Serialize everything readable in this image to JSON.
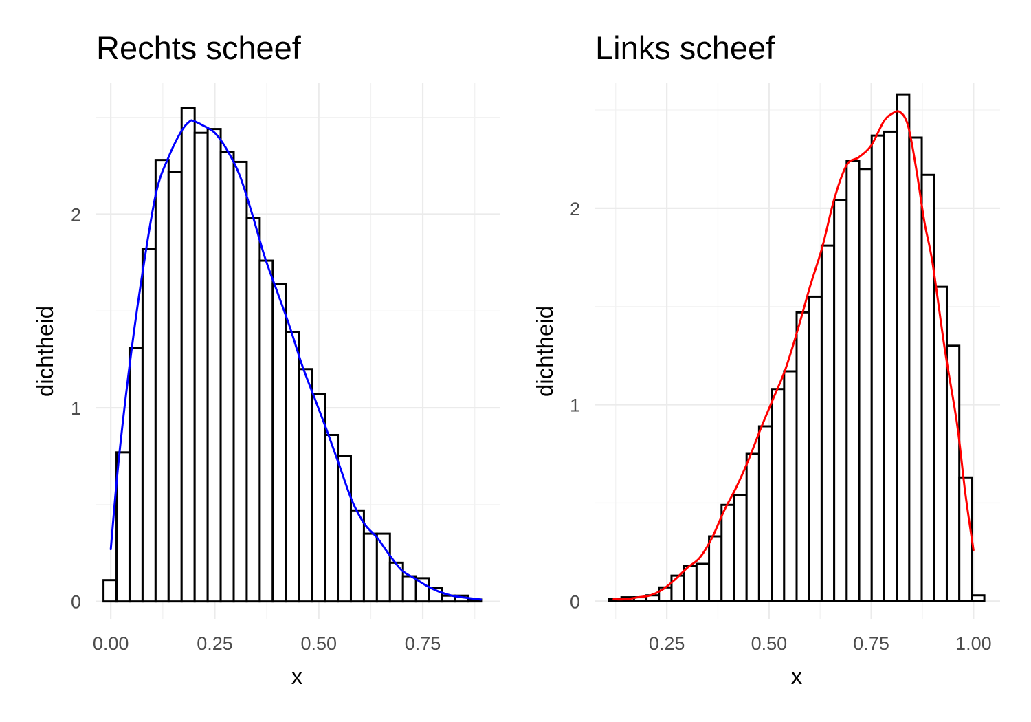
{
  "chart_data": [
    {
      "type": "bar",
      "subtype": "histogram-with-density",
      "title": "Rechts scheef",
      "xlabel": "x",
      "ylabel": "dichtheid",
      "xlim": [
        -0.035,
        0.935
      ],
      "ylim": [
        -0.09,
        2.68
      ],
      "x_ticks": [
        0.0,
        0.25,
        0.5,
        0.75
      ],
      "x_tick_labels": [
        "0.00",
        "0.25",
        "0.50",
        "0.75"
      ],
      "y_ticks": [
        0,
        1,
        2
      ],
      "y_tick_labels": [
        "0",
        "1",
        "2"
      ],
      "grid": true,
      "density_color": "#0000ff",
      "bin_width": 0.0313,
      "bins": [
        {
          "x0": -0.0175,
          "x1": 0.0138,
          "density": 0.11
        },
        {
          "x0": 0.0138,
          "x1": 0.0451,
          "density": 0.77
        },
        {
          "x0": 0.0451,
          "x1": 0.0764,
          "density": 1.31
        },
        {
          "x0": 0.0764,
          "x1": 0.1077,
          "density": 1.82
        },
        {
          "x0": 0.1077,
          "x1": 0.139,
          "density": 2.28
        },
        {
          "x0": 0.139,
          "x1": 0.1703,
          "density": 2.22
        },
        {
          "x0": 0.1703,
          "x1": 0.2016,
          "density": 2.55
        },
        {
          "x0": 0.2016,
          "x1": 0.2329,
          "density": 2.42
        },
        {
          "x0": 0.2329,
          "x1": 0.2642,
          "density": 2.44
        },
        {
          "x0": 0.2642,
          "x1": 0.2955,
          "density": 2.32
        },
        {
          "x0": 0.2955,
          "x1": 0.3268,
          "density": 2.27
        },
        {
          "x0": 0.3268,
          "x1": 0.3581,
          "density": 1.98
        },
        {
          "x0": 0.3581,
          "x1": 0.3894,
          "density": 1.76
        },
        {
          "x0": 0.3894,
          "x1": 0.4207,
          "density": 1.64
        },
        {
          "x0": 0.4207,
          "x1": 0.452,
          "density": 1.39
        },
        {
          "x0": 0.452,
          "x1": 0.4833,
          "density": 1.2
        },
        {
          "x0": 0.4833,
          "x1": 0.5146,
          "density": 1.07
        },
        {
          "x0": 0.5146,
          "x1": 0.5459,
          "density": 0.86
        },
        {
          "x0": 0.5459,
          "x1": 0.5772,
          "density": 0.75
        },
        {
          "x0": 0.5772,
          "x1": 0.6085,
          "density": 0.47
        },
        {
          "x0": 0.6085,
          "x1": 0.6398,
          "density": 0.35
        },
        {
          "x0": 0.6398,
          "x1": 0.6711,
          "density": 0.35
        },
        {
          "x0": 0.6711,
          "x1": 0.7024,
          "density": 0.2
        },
        {
          "x0": 0.7024,
          "x1": 0.7337,
          "density": 0.13
        },
        {
          "x0": 0.7337,
          "x1": 0.765,
          "density": 0.12
        },
        {
          "x0": 0.765,
          "x1": 0.7963,
          "density": 0.07
        },
        {
          "x0": 0.7963,
          "x1": 0.8276,
          "density": 0.03
        },
        {
          "x0": 0.8276,
          "x1": 0.8589,
          "density": 0.03
        },
        {
          "x0": 0.8589,
          "x1": 0.8902,
          "density": 0.01
        }
      ],
      "density_curve": {
        "x": [
          0.0,
          0.02,
          0.05,
          0.08,
          0.11,
          0.14,
          0.17,
          0.19,
          0.2,
          0.22,
          0.25,
          0.28,
          0.31,
          0.34,
          0.37,
          0.4,
          0.43,
          0.46,
          0.49,
          0.52,
          0.55,
          0.58,
          0.61,
          0.64,
          0.67,
          0.7,
          0.73,
          0.76,
          0.79,
          0.82,
          0.85,
          0.89
        ],
        "y": [
          0.27,
          0.75,
          1.3,
          1.75,
          2.12,
          2.3,
          2.43,
          2.48,
          2.48,
          2.46,
          2.42,
          2.33,
          2.2,
          2.0,
          1.78,
          1.6,
          1.42,
          1.22,
          1.05,
          0.88,
          0.7,
          0.52,
          0.4,
          0.33,
          0.24,
          0.16,
          0.12,
          0.08,
          0.05,
          0.03,
          0.02,
          0.01
        ]
      }
    },
    {
      "type": "bar",
      "subtype": "histogram-with-density",
      "title": "Links scheef",
      "xlabel": "x",
      "ylabel": "dichtheid",
      "xlim": [
        0.075,
        1.065
      ],
      "ylim": [
        -0.09,
        2.64
      ],
      "x_ticks": [
        0.25,
        0.5,
        0.75,
        1.0
      ],
      "x_tick_labels": [
        "0.25",
        "0.50",
        "0.75",
        "1.00"
      ],
      "y_ticks": [
        0,
        1,
        2
      ],
      "y_tick_labels": [
        "0",
        "1",
        "2"
      ],
      "grid": true,
      "density_color": "#ff0000",
      "bin_width": 0.0306,
      "bins": [
        {
          "x0": 0.1085,
          "x1": 0.1391,
          "density": 0.01
        },
        {
          "x0": 0.1391,
          "x1": 0.1697,
          "density": 0.02
        },
        {
          "x0": 0.1697,
          "x1": 0.2003,
          "density": 0.02
        },
        {
          "x0": 0.2003,
          "x1": 0.2309,
          "density": 0.03
        },
        {
          "x0": 0.2309,
          "x1": 0.2615,
          "density": 0.07
        },
        {
          "x0": 0.2615,
          "x1": 0.2921,
          "density": 0.13
        },
        {
          "x0": 0.2921,
          "x1": 0.3227,
          "density": 0.18
        },
        {
          "x0": 0.3227,
          "x1": 0.3533,
          "density": 0.19
        },
        {
          "x0": 0.3533,
          "x1": 0.3839,
          "density": 0.33
        },
        {
          "x0": 0.3839,
          "x1": 0.4145,
          "density": 0.49
        },
        {
          "x0": 0.4145,
          "x1": 0.4451,
          "density": 0.54
        },
        {
          "x0": 0.4451,
          "x1": 0.4757,
          "density": 0.75
        },
        {
          "x0": 0.4757,
          "x1": 0.5063,
          "density": 0.89
        },
        {
          "x0": 0.5063,
          "x1": 0.5369,
          "density": 1.08
        },
        {
          "x0": 0.5369,
          "x1": 0.5675,
          "density": 1.17
        },
        {
          "x0": 0.5675,
          "x1": 0.5981,
          "density": 1.47
        },
        {
          "x0": 0.5981,
          "x1": 0.6287,
          "density": 1.55
        },
        {
          "x0": 0.6287,
          "x1": 0.6593,
          "density": 1.81
        },
        {
          "x0": 0.6593,
          "x1": 0.6899,
          "density": 2.04
        },
        {
          "x0": 0.6899,
          "x1": 0.7205,
          "density": 2.24
        },
        {
          "x0": 0.7205,
          "x1": 0.7511,
          "density": 2.2
        },
        {
          "x0": 0.7511,
          "x1": 0.7817,
          "density": 2.37
        },
        {
          "x0": 0.7817,
          "x1": 0.8123,
          "density": 2.39
        },
        {
          "x0": 0.8123,
          "x1": 0.8429,
          "density": 2.58
        },
        {
          "x0": 0.8429,
          "x1": 0.8735,
          "density": 2.36
        },
        {
          "x0": 0.8735,
          "x1": 0.9041,
          "density": 2.17
        },
        {
          "x0": 0.9041,
          "x1": 0.9347,
          "density": 1.6
        },
        {
          "x0": 0.9347,
          "x1": 0.9653,
          "density": 1.3
        },
        {
          "x0": 0.9653,
          "x1": 0.9959,
          "density": 0.63
        },
        {
          "x0": 0.9959,
          "x1": 1.0265,
          "density": 0.03
        }
      ],
      "density_curve": {
        "x": [
          0.12,
          0.15,
          0.18,
          0.21,
          0.24,
          0.27,
          0.3,
          0.33,
          0.36,
          0.39,
          0.42,
          0.45,
          0.48,
          0.51,
          0.54,
          0.57,
          0.6,
          0.63,
          0.66,
          0.69,
          0.72,
          0.75,
          0.78,
          0.8,
          0.82,
          0.84,
          0.86,
          0.88,
          0.9,
          0.93,
          0.96,
          0.98,
          1.0
        ],
        "y": [
          0.01,
          0.01,
          0.02,
          0.03,
          0.06,
          0.11,
          0.17,
          0.22,
          0.32,
          0.46,
          0.58,
          0.72,
          0.88,
          1.03,
          1.18,
          1.38,
          1.6,
          1.8,
          2.05,
          2.22,
          2.26,
          2.32,
          2.44,
          2.48,
          2.49,
          2.42,
          2.2,
          1.93,
          1.72,
          1.28,
          0.9,
          0.55,
          0.26
        ]
      }
    }
  ]
}
